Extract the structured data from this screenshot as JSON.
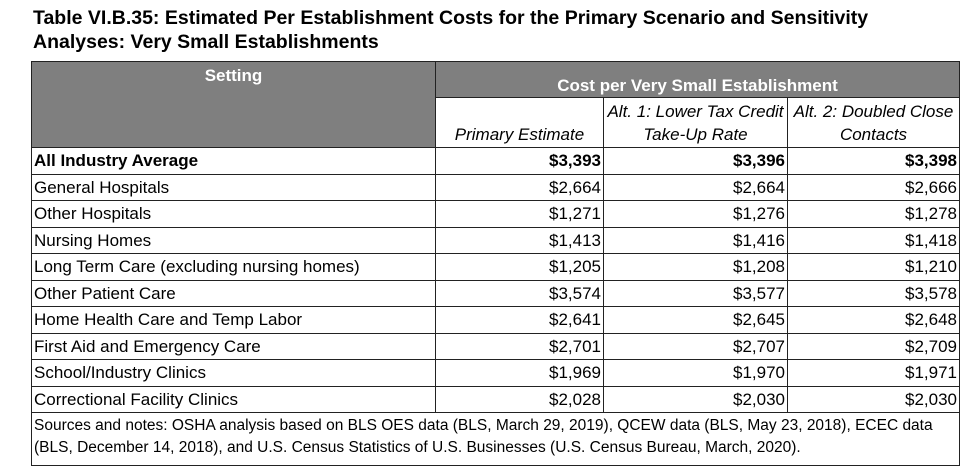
{
  "title": "Table VI.B.35: Estimated Per Establishment Costs for the Primary Scenario and Sensitivity Analyses:  Very Small Establishments",
  "header": {
    "setting": "Setting",
    "group": "Cost per Very Small Establishment",
    "col1": "Primary Estimate",
    "col2": "Alt. 1: Lower Tax Credit Take-Up Rate",
    "col3": "Alt. 2: Doubled Close Contacts"
  },
  "rows": [
    {
      "setting": "All Industry Average",
      "primary": "$3,393",
      "alt1": "$3,396",
      "alt2": "$3,398"
    },
    {
      "setting": "General Hospitals",
      "primary": "$2,664",
      "alt1": "$2,664",
      "alt2": "$2,666"
    },
    {
      "setting": "Other Hospitals",
      "primary": "$1,271",
      "alt1": "$1,276",
      "alt2": "$1,278"
    },
    {
      "setting": "Nursing Homes",
      "primary": "$1,413",
      "alt1": "$1,416",
      "alt2": "$1,418"
    },
    {
      "setting": "Long Term Care (excluding nursing homes)",
      "primary": "$1,205",
      "alt1": "$1,208",
      "alt2": "$1,210"
    },
    {
      "setting": "Other Patient Care",
      "primary": "$3,574",
      "alt1": "$3,577",
      "alt2": "$3,578"
    },
    {
      "setting": "Home Health Care and Temp Labor",
      "primary": "$2,641",
      "alt1": "$2,645",
      "alt2": "$2,648"
    },
    {
      "setting": "First Aid and Emergency Care",
      "primary": "$2,701",
      "alt1": "$2,707",
      "alt2": "$2,709"
    },
    {
      "setting": "School/Industry Clinics",
      "primary": "$1,969",
      "alt1": "$1,970",
      "alt2": "$1,971"
    },
    {
      "setting": "Correctional Facility Clinics",
      "primary": "$2,028",
      "alt1": "$2,030",
      "alt2": "$2,030"
    }
  ],
  "note": "Sources and notes: OSHA analysis based on BLS OES data (BLS, March 29, 2019), QCEW data (BLS, May 23, 2018), ECEC data (BLS, December 14, 2018), and U.S. Census Statistics of U.S. Businesses (U.S. Census Bureau, March, 2020)."
}
